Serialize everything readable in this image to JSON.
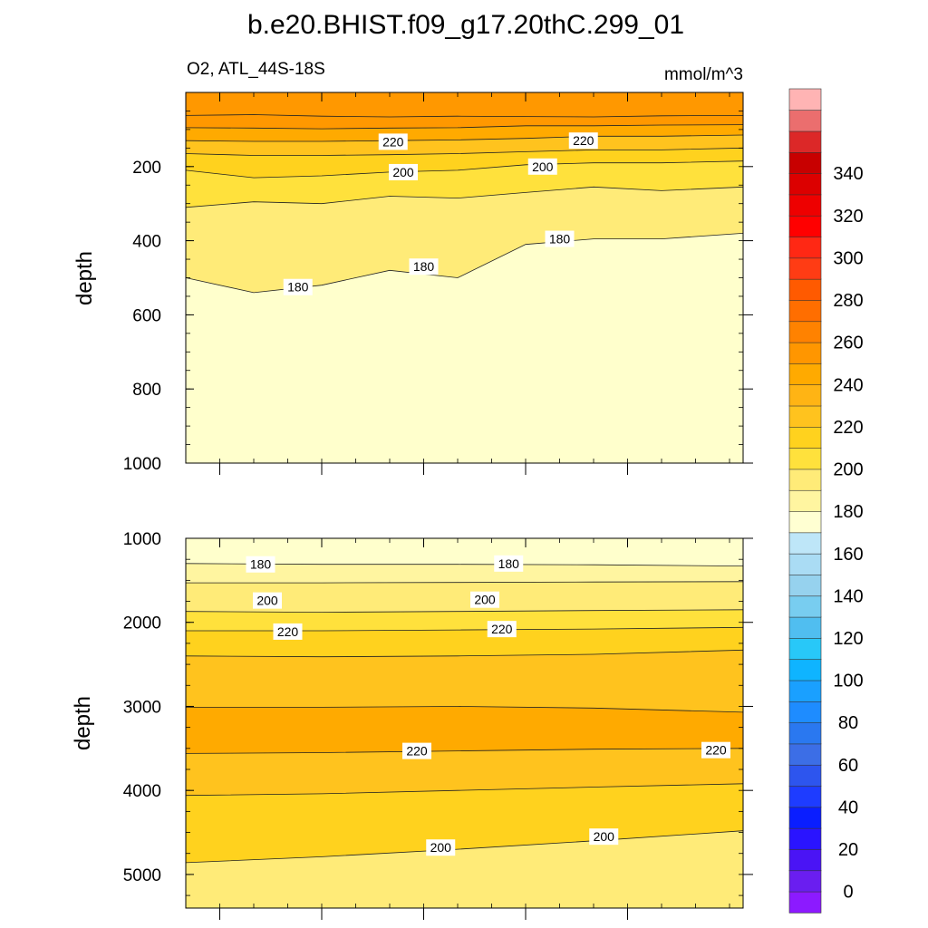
{
  "figure": {
    "title": "b.e20.BHIST.f09_g17.20thC.299_01",
    "left_subtitle": "O2, ATL_44S-18S",
    "right_subtitle": "mmol/m^3"
  },
  "chart_data": [
    {
      "type": "heatmap",
      "panel": "upper",
      "variable": "O2",
      "region": "ATL_44S-18S",
      "units": "mmol/m^3",
      "xlabel": "",
      "ylabel": "depth",
      "xlim": [
        1850,
        2014
      ],
      "ylim": [
        1000,
        0
      ],
      "xticks": [
        1860,
        1890,
        1920,
        1950,
        1980
      ],
      "yticks": [
        200,
        400,
        600,
        800,
        1000
      ],
      "x": [
        1850,
        1870,
        1890,
        1910,
        1930,
        1950,
        1970,
        1990,
        2014
      ],
      "contours": [
        {
          "level": 240,
          "depth": [
            62,
            60,
            64,
            66,
            64,
            65,
            66,
            63,
            62
          ]
        },
        {
          "level": 230,
          "depth": [
            95,
            96,
            98,
            96,
            95,
            90,
            90,
            88,
            87
          ]
        },
        {
          "level": 220,
          "depth": [
            130,
            132,
            132,
            130,
            128,
            124,
            118,
            118,
            115
          ]
        },
        {
          "level": 210,
          "depth": [
            165,
            170,
            170,
            168,
            165,
            160,
            155,
            155,
            150
          ]
        },
        {
          "level": 200,
          "depth": [
            210,
            230,
            225,
            215,
            210,
            195,
            190,
            190,
            185
          ]
        },
        {
          "level": 190,
          "depth": [
            310,
            295,
            300,
            280,
            285,
            270,
            255,
            265,
            255
          ]
        },
        {
          "level": 180,
          "depth": [
            500,
            540,
            520,
            480,
            500,
            410,
            395,
            395,
            380
          ]
        }
      ],
      "contour_labels": [
        {
          "text": "220",
          "x": 1911,
          "depth": 133
        },
        {
          "text": "220",
          "x": 1967,
          "depth": 130
        },
        {
          "text": "200",
          "x": 1914,
          "depth": 215
        },
        {
          "text": "200",
          "x": 1955,
          "depth": 200
        },
        {
          "text": "180",
          "x": 1960,
          "depth": 395
        },
        {
          "text": "180",
          "x": 1920,
          "depth": 470
        },
        {
          "text": "180",
          "x": 1883,
          "depth": 525
        }
      ]
    },
    {
      "type": "heatmap",
      "panel": "lower",
      "variable": "O2",
      "units": "mmol/m^3",
      "xlabel": "",
      "ylabel": "depth",
      "xlim": [
        1850,
        2014
      ],
      "ylim": [
        5400,
        1000
      ],
      "yticks": [
        1000,
        2000,
        3000,
        4000,
        5000
      ],
      "x": [
        1850,
        1890,
        1930,
        1970,
        2014
      ],
      "contours": [
        {
          "level": 180,
          "depth": [
            1300,
            1310,
            1310,
            1315,
            1330
          ]
        },
        {
          "level": 190,
          "depth": [
            1530,
            1530,
            1525,
            1520,
            1515
          ]
        },
        {
          "level": 200,
          "depth": [
            1870,
            1880,
            1870,
            1860,
            1850
          ]
        },
        {
          "level": 210,
          "depth": [
            2100,
            2100,
            2090,
            2080,
            2060
          ]
        },
        {
          "level": 220,
          "depth": [
            2400,
            2410,
            2400,
            2380,
            2330
          ]
        },
        {
          "level": 230,
          "depth": [
            3010,
            3010,
            3000,
            3020,
            3070
          ]
        },
        {
          "level": 220,
          "depth": [
            3560,
            3550,
            3530,
            3510,
            3500
          ]
        },
        {
          "level": 210,
          "depth": [
            4060,
            4040,
            4000,
            3960,
            3920
          ]
        },
        {
          "level": 200,
          "depth": [
            4860,
            4790,
            4700,
            4600,
            4480
          ]
        }
      ],
      "contour_labels": [
        {
          "text": "180",
          "x": 1872,
          "depth": 1310
        },
        {
          "text": "180",
          "x": 1945,
          "depth": 1300
        },
        {
          "text": "200",
          "x": 1874,
          "depth": 1740
        },
        {
          "text": "200",
          "x": 1938,
          "depth": 1730
        },
        {
          "text": "220",
          "x": 1880,
          "depth": 2110
        },
        {
          "text": "220",
          "x": 1943,
          "depth": 2080
        },
        {
          "text": "220",
          "x": 1918,
          "depth": 3530
        },
        {
          "text": "220",
          "x": 2006,
          "depth": 3520
        },
        {
          "text": "200",
          "x": 1925,
          "depth": 4680
        },
        {
          "text": "200",
          "x": 1973,
          "depth": 4550
        }
      ]
    }
  ],
  "colorbar": {
    "tick_labels": [
      "0",
      "20",
      "40",
      "60",
      "80",
      "100",
      "120",
      "140",
      "160",
      "180",
      "200",
      "220",
      "240",
      "260",
      "280",
      "300",
      "320",
      "340"
    ],
    "colors": [
      "#8c1aff",
      "#6a1ef0",
      "#4a14f5",
      "#2a14ff",
      "#0a1eff",
      "#1e3cff",
      "#2d55ee",
      "#3c6ee6",
      "#2a78f0",
      "#1e8cff",
      "#1aa0ff",
      "#0fb4ff",
      "#28c8f8",
      "#50bef0",
      "#78cdf0",
      "#96d2ee",
      "#aadcf4",
      "#bee6f8",
      "#ffffd2",
      "#fff5a0",
      "#ffeb78",
      "#ffe13c",
      "#ffd21e",
      "#ffc31e",
      "#ffb414",
      "#ffaa00",
      "#ff9600",
      "#ff8200",
      "#ff6e00",
      "#ff5a00",
      "#ff3c14",
      "#ff2814",
      "#ff0000",
      "#ee0000",
      "#dc0000",
      "#c80000",
      "#dc2828",
      "#eb6e6e",
      "#ffb4b4"
    ]
  },
  "fill_colors": {
    "lt180": "#ffffcc",
    "l180": "#fff5a0",
    "l190": "#ffeb78",
    "l200": "#ffe13c",
    "l210": "#ffd21e",
    "l220": "#ffc31e",
    "l230": "#ffaa00",
    "l240": "#ff9800"
  }
}
